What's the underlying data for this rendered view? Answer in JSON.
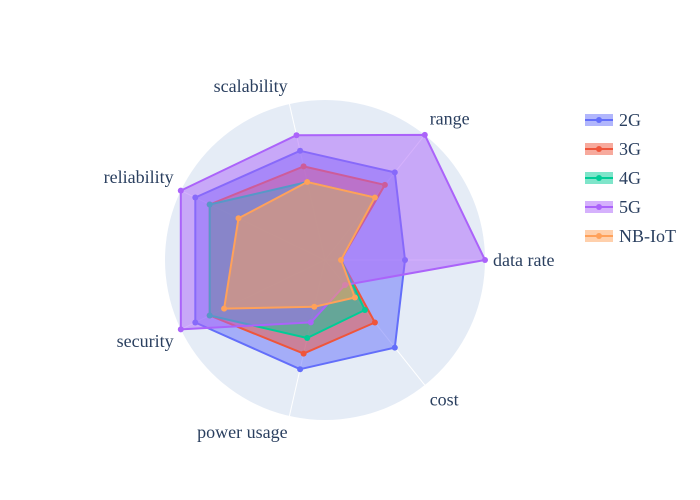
{
  "chart_data": {
    "type": "radar",
    "axes": [
      "data rate",
      "range",
      "scalability",
      "reliability",
      "security",
      "power usage",
      "cost"
    ],
    "range": [
      0,
      10
    ],
    "grid": true,
    "legend_position": "top-right",
    "series": [
      {
        "name": "2G",
        "color": "#636efa",
        "values": [
          5,
          7,
          7,
          9,
          9,
          7,
          7
        ]
      },
      {
        "name": "3G",
        "color": "#ef553b",
        "values": [
          1,
          6,
          6,
          8,
          8,
          6,
          5
        ]
      },
      {
        "name": "4G",
        "color": "#00cc96",
        "values": [
          1,
          5,
          5,
          8,
          8,
          5,
          4
        ]
      },
      {
        "name": "5G",
        "color": "#ab63fa",
        "values": [
          10,
          10,
          8,
          10,
          10,
          4,
          2
        ]
      },
      {
        "name": "NB-IoT",
        "color": "#ffa15a",
        "values": [
          1,
          5,
          5,
          6,
          7,
          3,
          3
        ]
      }
    ]
  }
}
